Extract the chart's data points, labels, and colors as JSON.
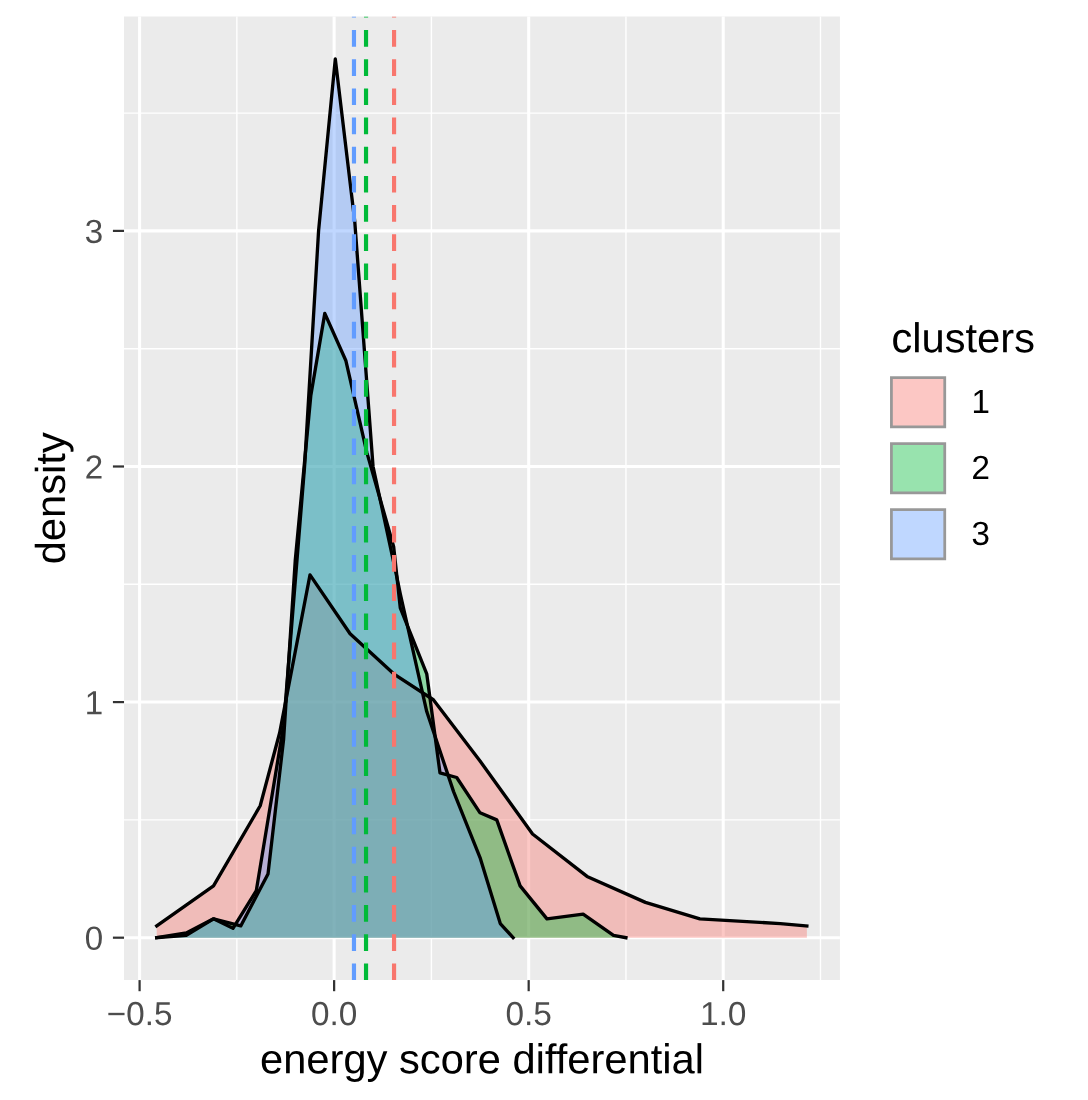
{
  "chart_data": {
    "type": "area",
    "xlabel": "energy score differential",
    "ylabel": "density",
    "legend_title": "clusters",
    "legend": "right",
    "grid": true,
    "xlim": [
      -0.54,
      1.3
    ],
    "ylim": [
      -0.18,
      3.91
    ],
    "xticks": [
      {
        "value": -0.5,
        "label": "−0.5"
      },
      {
        "value": 0.0,
        "label": "0.0"
      },
      {
        "value": 0.5,
        "label": "0.5"
      },
      {
        "value": 1.0,
        "label": "1.0"
      }
    ],
    "yticks": [
      0,
      1,
      2,
      3
    ],
    "series": [
      {
        "name": "1",
        "color": "#f8766d",
        "x": [
          -0.456,
          -0.31,
          -0.19,
          -0.14,
          -0.062,
          0.041,
          0.153,
          0.255,
          0.375,
          0.51,
          0.65,
          0.8,
          0.94,
          1.147,
          1.215
        ],
        "values": [
          0.05,
          0.22,
          0.56,
          0.87,
          1.54,
          1.29,
          1.12,
          1.01,
          0.75,
          0.44,
          0.26,
          0.15,
          0.08,
          0.06,
          0.05
        ]
      },
      {
        "name": "2",
        "color": "#00ba38",
        "x": [
          -0.456,
          -0.38,
          -0.31,
          -0.24,
          -0.17,
          -0.13,
          -0.1,
          -0.06,
          -0.024,
          0.03,
          0.084,
          0.153,
          0.17,
          0.238,
          0.272,
          0.315,
          0.375,
          0.418,
          0.478,
          0.547,
          0.64,
          0.718,
          0.75
        ],
        "values": [
          0,
          0.01,
          0.08,
          0.05,
          0.27,
          0.84,
          1.6,
          2.3,
          2.65,
          2.45,
          2.06,
          1.66,
          1.4,
          1.12,
          0.7,
          0.68,
          0.53,
          0.5,
          0.22,
          0.08,
          0.1,
          0.01,
          0
        ]
      },
      {
        "name": "3",
        "color": "#619cff",
        "x": [
          -0.456,
          -0.38,
          -0.31,
          -0.26,
          -0.2,
          -0.13,
          -0.076,
          -0.04,
          0.003,
          0.053,
          0.1,
          0.16,
          0.17,
          0.238,
          0.307,
          0.375,
          0.427,
          0.46
        ],
        "values": [
          0,
          0.02,
          0.08,
          0.04,
          0.2,
          0.9,
          2.0,
          3.0,
          3.73,
          3.04,
          2.0,
          1.54,
          1.46,
          0.96,
          0.62,
          0.34,
          0.06,
          0
        ]
      }
    ],
    "ref_lines": [
      {
        "axis": "x",
        "value": 0.154,
        "color": "#f8766d",
        "line_style": "dashed"
      },
      {
        "axis": "x",
        "value": 0.082,
        "color": "#00ba38",
        "line_style": "dashed"
      },
      {
        "axis": "x",
        "value": 0.051,
        "color": "#619cff",
        "line_style": "dashed"
      }
    ]
  }
}
